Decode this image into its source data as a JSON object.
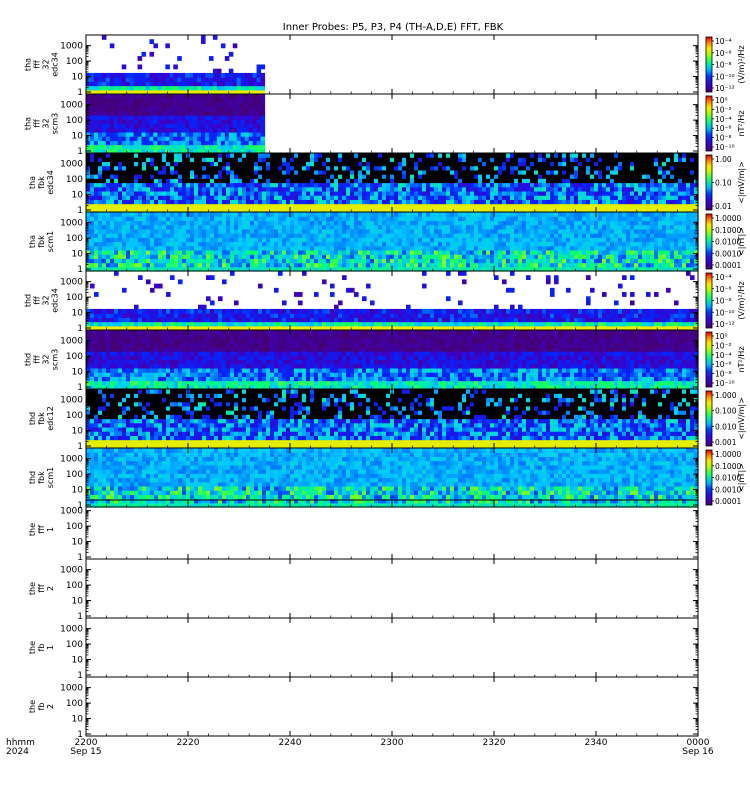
{
  "chart_data": {
    "type": "heatmap",
    "title": "Inner Probes: P5, P3, P4 (TH-A,D,E) FFT, FBK",
    "x_axis": {
      "ticks": [
        "2200",
        "2220",
        "2240",
        "2300",
        "2320",
        "2340",
        "0000"
      ],
      "tick_minutes": [
        0,
        20,
        40,
        60,
        80,
        100,
        120
      ],
      "date_left": "Sep 15",
      "date_right": "Sep 16",
      "label_top": "hhmm",
      "label_bottom": "2024",
      "range_minutes": [
        0,
        120
      ]
    },
    "y_scale": "log",
    "y_ticks": [
      "1",
      "10",
      "100",
      "1000"
    ],
    "panels": [
      {
        "label": [
          "tha",
          "fff",
          "32",
          "edc34"
        ],
        "data_end_minute": 35,
        "colorbar": {
          "unit": "(V/m)²/Hz",
          "ticks": [
            "10⁻⁴",
            "10⁻⁶",
            "10⁻⁸",
            "10⁻¹⁰",
            "10⁻¹²"
          ]
        }
      },
      {
        "label": [
          "tha",
          "fff",
          "32",
          "scm3"
        ],
        "data_end_minute": 35,
        "colorbar": {
          "unit": "nT²/Hz",
          "ticks": [
            "10⁰",
            "10⁻²",
            "10⁻⁴",
            "10⁻⁶",
            "10⁻⁸",
            "10⁻¹⁰"
          ]
        }
      },
      {
        "label": [
          "tha",
          "fbk",
          "edc34"
        ],
        "data_end_minute": 120,
        "colorbar": {
          "unit": "<|mV/m|>",
          "ticks": [
            "1.00",
            "0.10",
            "0.01"
          ]
        }
      },
      {
        "label": [
          "tha",
          "fbk",
          "scm1"
        ],
        "data_end_minute": 120,
        "colorbar": {
          "unit": "<|nT|>",
          "ticks": [
            "1.0000",
            "0.1000",
            "0.0100",
            "0.0010",
            "0.0001"
          ]
        }
      },
      {
        "label": [
          "thd",
          "fff",
          "32",
          "edc34"
        ],
        "data_end_minute": 120,
        "colorbar": {
          "unit": "(V/m)²/Hz",
          "ticks": [
            "10⁻⁴",
            "10⁻⁶",
            "10⁻⁸",
            "10⁻¹⁰",
            "10⁻¹²"
          ]
        }
      },
      {
        "label": [
          "thd",
          "fff",
          "32",
          "scm3"
        ],
        "data_end_minute": 120,
        "colorbar": {
          "unit": "nT²/Hz",
          "ticks": [
            "10⁰",
            "10⁻²",
            "10⁻⁴",
            "10⁻⁶",
            "10⁻⁸",
            "10⁻¹⁰"
          ]
        }
      },
      {
        "label": [
          "thd",
          "fbk",
          "edc12"
        ],
        "data_end_minute": 120,
        "colorbar": {
          "unit": "<|mV/m|>",
          "ticks": [
            "1.000",
            "0.100",
            "0.010",
            "0.001"
          ]
        }
      },
      {
        "label": [
          "thd",
          "fbk",
          "scm1"
        ],
        "data_end_minute": 120,
        "colorbar": {
          "unit": "<|nT|>",
          "ticks": [
            "1.0000",
            "0.1000",
            "0.0100",
            "0.0010",
            "0.0001"
          ]
        }
      },
      {
        "label": [
          "the",
          "fff",
          "1"
        ],
        "data_end_minute": 0,
        "colorbar": null
      },
      {
        "label": [
          "the",
          "fff",
          "2"
        ],
        "data_end_minute": 0,
        "colorbar": null
      },
      {
        "label": [
          "the",
          "fb",
          "1"
        ],
        "data_end_minute": 0,
        "colorbar": null
      },
      {
        "label": [
          "the",
          "fb",
          "2"
        ],
        "data_end_minute": 0,
        "colorbar": null
      }
    ]
  }
}
